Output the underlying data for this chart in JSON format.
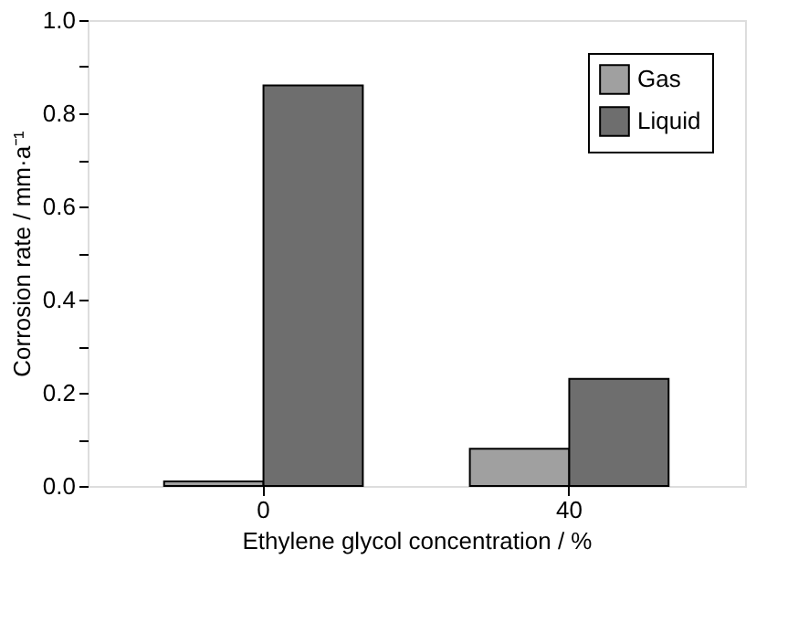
{
  "chart_data": {
    "type": "bar",
    "xlabel": "Ethylene glycol concentration / %",
    "ylabel": "Corrosion rate / mm·a⁻¹",
    "categories": [
      "0",
      "40"
    ],
    "series": [
      {
        "name": "Gas",
        "color": "#a0a0a0",
        "values": [
          0.01,
          0.08
        ]
      },
      {
        "name": "Liquid",
        "color": "#6e6e6e",
        "values": [
          0.86,
          0.23
        ]
      }
    ],
    "ylim": [
      0,
      1.0
    ],
    "yticks": [
      {
        "value": 0,
        "label": "0.0"
      },
      {
        "value": 0.1,
        "label": null
      },
      {
        "value": 0.2,
        "label": "0.2"
      },
      {
        "value": 0.3,
        "label": null
      },
      {
        "value": 0.4,
        "label": "0.4"
      },
      {
        "value": 0.5,
        "label": null
      },
      {
        "value": 0.6,
        "label": "0.6"
      },
      {
        "value": 0.7,
        "label": null
      },
      {
        "value": 0.8,
        "label": "0.8"
      },
      {
        "value": 0.9,
        "label": null
      },
      {
        "value": 1.0,
        "label": "1.0"
      }
    ],
    "grid": false,
    "legend": "top right"
  }
}
